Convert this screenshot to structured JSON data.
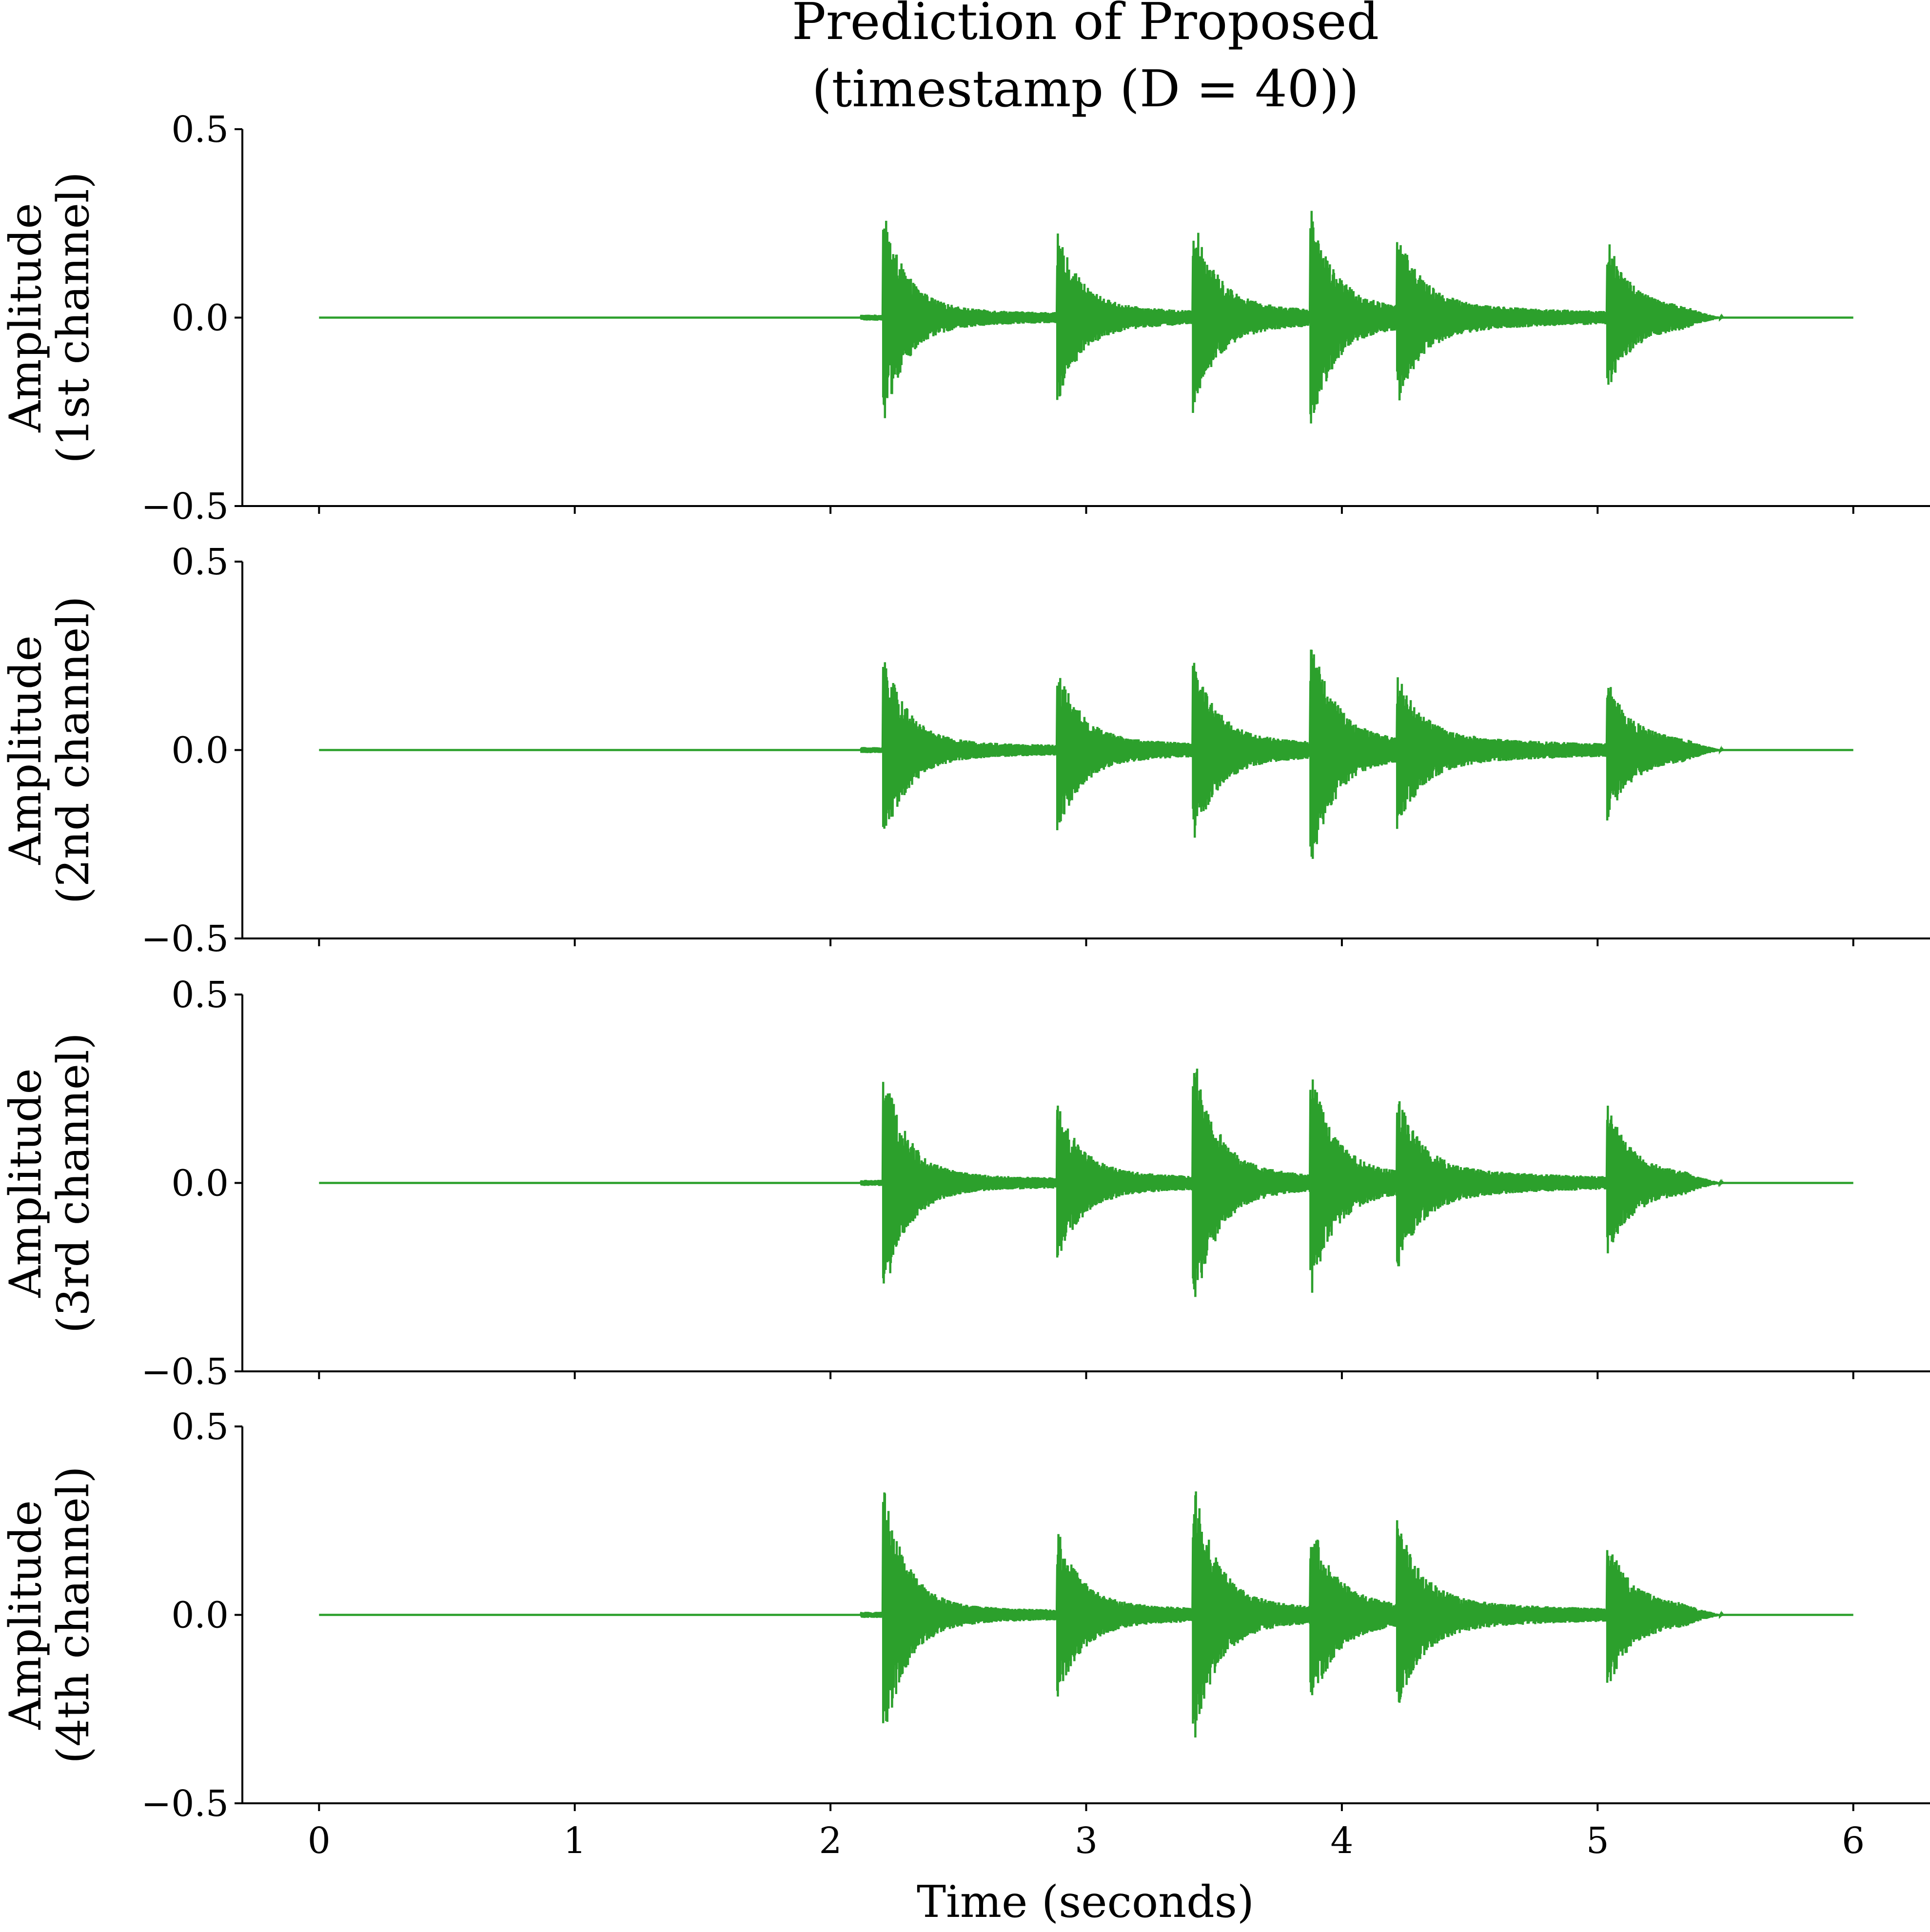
{
  "chart_data": {
    "type": "line",
    "title": [
      "Prediction of Proposed",
      "(timestamp (D = 40))"
    ],
    "xlabel": "Time (seconds)",
    "xlim": [
      -0.3,
      6.3
    ],
    "ylim": [
      -0.5,
      0.5
    ],
    "x_ticks": [
      0,
      1,
      2,
      3,
      4,
      5,
      6
    ],
    "x_tick_labels": [
      "0",
      "1",
      "2",
      "3",
      "4",
      "5",
      "6"
    ],
    "y_ticks": [
      0.5,
      0.0,
      -0.5
    ],
    "y_tick_labels": [
      "0.5",
      "0.0",
      "−0.5"
    ],
    "grid": false,
    "legend": "none",
    "line_color": "#2ca02c",
    "signal_start": 0.0,
    "signal_end": 6.0,
    "panels": [
      {
        "ylabel": [
          "Amplitude",
          "(1st channel)"
        ],
        "onsets": [
          {
            "t": 2.21,
            "peak": 0.25,
            "trough": -0.25
          },
          {
            "t": 2.89,
            "peak": 0.19,
            "trough": -0.19
          },
          {
            "t": 3.42,
            "peak": 0.23,
            "trough": -0.22
          },
          {
            "t": 3.88,
            "peak": 0.25,
            "trough": -0.25
          },
          {
            "t": 4.22,
            "peak": 0.18,
            "trough": -0.18
          },
          {
            "t": 5.04,
            "peak": 0.17,
            "trough": -0.16
          }
        ]
      },
      {
        "ylabel": [
          "Amplitude",
          "(2nd channel)"
        ],
        "onsets": [
          {
            "t": 2.21,
            "peak": 0.23,
            "trough": -0.23
          },
          {
            "t": 2.89,
            "peak": 0.19,
            "trough": -0.19
          },
          {
            "t": 3.42,
            "peak": 0.21,
            "trough": -0.21
          },
          {
            "t": 3.88,
            "peak": 0.27,
            "trough": -0.27
          },
          {
            "t": 4.22,
            "peak": 0.15,
            "trough": -0.16
          },
          {
            "t": 5.04,
            "peak": 0.15,
            "trough": -0.15
          }
        ]
      },
      {
        "ylabel": [
          "Amplitude",
          "(3rd channel)"
        ],
        "onsets": [
          {
            "t": 2.21,
            "peak": 0.28,
            "trough": -0.28
          },
          {
            "t": 2.89,
            "peak": 0.18,
            "trough": -0.18
          },
          {
            "t": 3.42,
            "peak": 0.31,
            "trough": -0.31
          },
          {
            "t": 3.88,
            "peak": 0.26,
            "trough": -0.26
          },
          {
            "t": 4.22,
            "peak": 0.18,
            "trough": -0.18
          },
          {
            "t": 5.04,
            "peak": 0.17,
            "trough": -0.16
          }
        ]
      },
      {
        "ylabel": [
          "Amplitude",
          "(4th channel)"
        ],
        "onsets": [
          {
            "t": 2.21,
            "peak": 0.31,
            "trough": -0.31
          },
          {
            "t": 2.89,
            "peak": 0.19,
            "trough": -0.19
          },
          {
            "t": 3.42,
            "peak": 0.32,
            "trough": -0.31
          },
          {
            "t": 3.88,
            "peak": 0.21,
            "trough": -0.21
          },
          {
            "t": 4.22,
            "peak": 0.2,
            "trough": -0.2
          },
          {
            "t": 5.04,
            "peak": 0.16,
            "trough": -0.16
          }
        ]
      }
    ]
  }
}
